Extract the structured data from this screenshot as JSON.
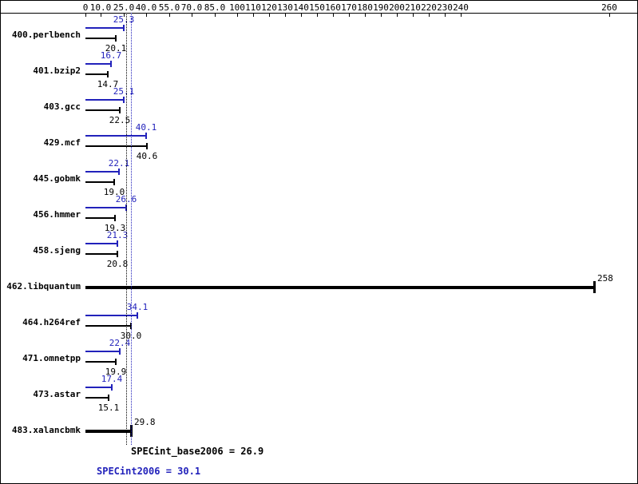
{
  "chart_data": {
    "type": "bar",
    "orientation": "horizontal",
    "title": "",
    "xlim": [
      0,
      260
    ],
    "colors": {
      "peak": "#2222bb",
      "base": "#000000"
    },
    "axis": {
      "ticks": [
        {
          "value": 0,
          "label": "0"
        },
        {
          "value": 10,
          "label": "10.0"
        },
        {
          "value": 25,
          "label": "25.0"
        },
        {
          "value": 40,
          "label": "40.0"
        },
        {
          "value": 55,
          "label": "55.0"
        },
        {
          "value": 70,
          "label": "70.0"
        },
        {
          "value": 85,
          "label": "85.0"
        },
        {
          "value": 100,
          "label": "100"
        },
        {
          "value": 110,
          "label": "110"
        },
        {
          "value": 120,
          "label": "120"
        },
        {
          "value": 130,
          "label": "130"
        },
        {
          "value": 140,
          "label": "140"
        },
        {
          "value": 150,
          "label": "150"
        },
        {
          "value": 160,
          "label": "160"
        },
        {
          "value": 170,
          "label": "170"
        },
        {
          "value": 180,
          "label": "180"
        },
        {
          "value": 190,
          "label": "190"
        },
        {
          "value": 200,
          "label": "200"
        },
        {
          "value": 210,
          "label": "210"
        },
        {
          "value": 220,
          "label": "220"
        },
        {
          "value": 230,
          "label": "230"
        },
        {
          "value": 240,
          "label": "240"
        },
        {
          "value": 260,
          "label": "260"
        }
      ]
    },
    "benchmarks": [
      {
        "name": "400.perlbench",
        "style": "double",
        "peak": 25.3,
        "peak_label": "25.3",
        "base": 20.1,
        "base_label": "20.1"
      },
      {
        "name": "401.bzip2",
        "style": "double",
        "peak": 16.7,
        "peak_label": "16.7",
        "base": 14.7,
        "base_label": "14.7"
      },
      {
        "name": "403.gcc",
        "style": "double",
        "peak": 25.1,
        "peak_label": "25.1",
        "base": 22.5,
        "base_label": "22.5"
      },
      {
        "name": "429.mcf",
        "style": "double",
        "peak": 40.1,
        "peak_label": "40.1",
        "base": 40.6,
        "base_label": "40.6"
      },
      {
        "name": "445.gobmk",
        "style": "double",
        "peak": 22.1,
        "peak_label": "22.1",
        "base": 19.0,
        "base_label": "19.0"
      },
      {
        "name": "456.hmmer",
        "style": "double",
        "peak": 26.6,
        "peak_label": "26.6",
        "base": 19.3,
        "base_label": "19.3"
      },
      {
        "name": "458.sjeng",
        "style": "double",
        "peak": 21.3,
        "peak_label": "21.3",
        "base": 20.8,
        "base_label": "20.8"
      },
      {
        "name": "462.libquantum",
        "style": "single",
        "peak": null,
        "peak_label": "",
        "base": 258,
        "base_label": "258"
      },
      {
        "name": "464.h264ref",
        "style": "double",
        "peak": 34.1,
        "peak_label": "34.1",
        "base": 30.0,
        "base_label": "30.0"
      },
      {
        "name": "471.omnetpp",
        "style": "double",
        "peak": 22.4,
        "peak_label": "22.4",
        "base": 19.9,
        "base_label": "19.9"
      },
      {
        "name": "473.astar",
        "style": "double",
        "peak": 17.4,
        "peak_label": "17.4",
        "base": 15.1,
        "base_label": "15.1"
      },
      {
        "name": "483.xalancbmk",
        "style": "single",
        "peak": null,
        "peak_label": "",
        "base": 29.8,
        "base_label": "29.8"
      }
    ],
    "summary": {
      "base": {
        "label": "SPECint_base2006 = 26.9",
        "value": 26.9
      },
      "peak": {
        "label": "SPECint2006 = 30.1",
        "value": 30.1
      }
    }
  }
}
